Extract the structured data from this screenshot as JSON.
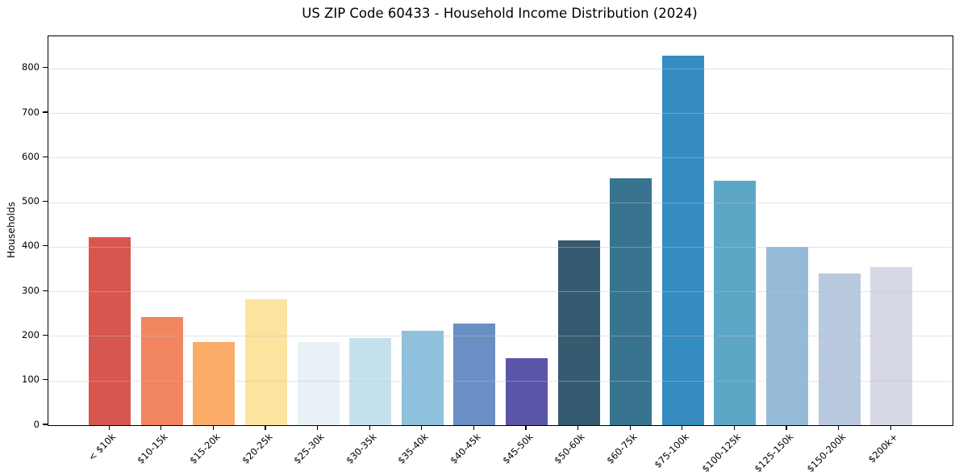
{
  "figure": {
    "title": "US ZIP Code 60433 - Household Income Distribution (2024)"
  },
  "chart_data": {
    "type": "bar",
    "title": "US ZIP Code 60433 - Household Income Distribution (2024)",
    "xlabel": "",
    "ylabel": "Households",
    "categories": [
      "< $10k",
      "$10-15k",
      "$15-20k",
      "$20-25k",
      "$25-30k",
      "$30-35k",
      "$35-40k",
      "$40-45k",
      "$45-50k",
      "$50-60k",
      "$60-75k",
      "$75-100k",
      "$100-125k",
      "$125-150k",
      "$150-200k",
      "$200k+"
    ],
    "values": [
      421,
      243,
      186,
      283,
      187,
      195,
      212,
      228,
      150,
      414,
      553,
      829,
      548,
      400,
      341,
      354
    ],
    "bar_colors": [
      "#d7564f",
      "#f0855f",
      "#f9ab67",
      "#fce49e",
      "#e7f1f6",
      "#c6e1ee",
      "#8fc0dc",
      "#6a8fc4",
      "#5a55a6",
      "#365a70",
      "#38748f",
      "#348cc0",
      "#5da7c6",
      "#94bad8",
      "#b9c9df",
      "#d7d8e6"
    ],
    "yticks": [
      0,
      100,
      200,
      300,
      400,
      500,
      600,
      700,
      800
    ],
    "ylim": [
      0,
      872
    ],
    "grid": "horizontal-above-bars",
    "legend": "none",
    "x_tick_rotation_deg": 45
  }
}
